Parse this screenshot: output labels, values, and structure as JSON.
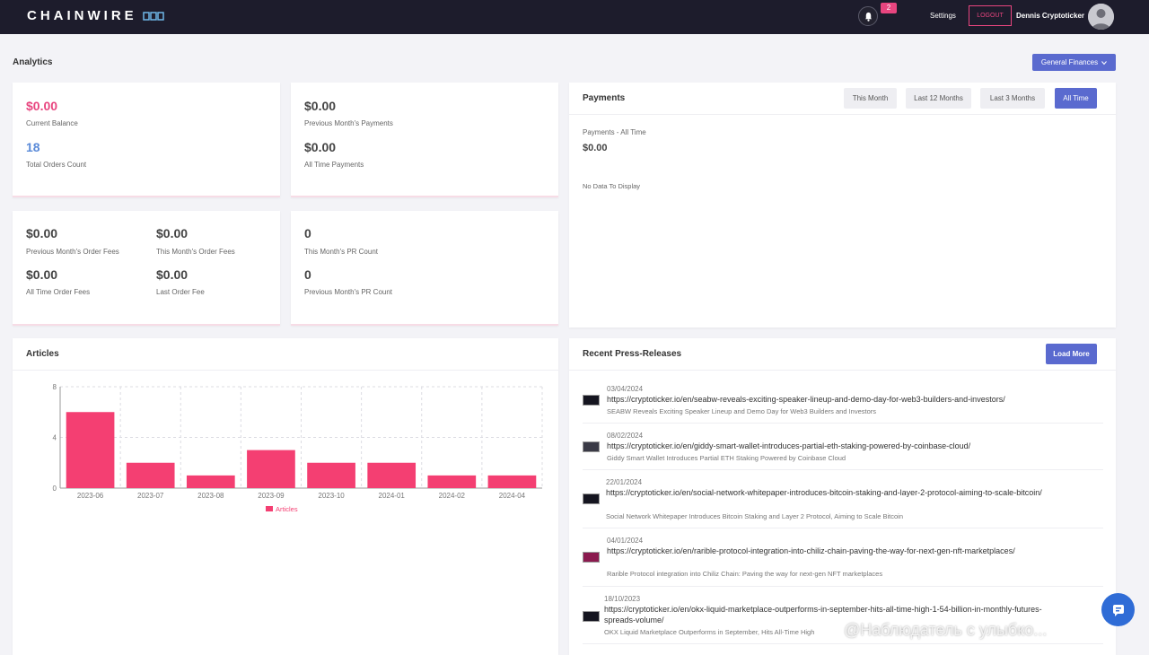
{
  "header": {
    "logo_text": "CHAINWIRE",
    "notification_count": "2",
    "settings_label": "Settings",
    "logout_label": "LOGOUT",
    "user_name": "Dennis Cryptoticker"
  },
  "page": {
    "title": "Analytics",
    "dropdown_label": "General Finances"
  },
  "stats": {
    "current_balance": {
      "value": "$0.00",
      "label": "Current Balance"
    },
    "total_orders": {
      "value": "18",
      "label": "Total Orders Count"
    },
    "prev_month_payments": {
      "value": "$0.00",
      "label": "Previous Month's Payments"
    },
    "all_time_payments": {
      "value": "$0.00",
      "label": "All Time Payments"
    },
    "prev_month_order_fees": {
      "value": "$0.00",
      "label": "Previous Month's Order Fees"
    },
    "this_month_order_fees": {
      "value": "$0.00",
      "label": "This Month's Order Fees"
    },
    "all_time_order_fees": {
      "value": "$0.00",
      "label": "All Time Order Fees"
    },
    "last_order_fee": {
      "value": "$0.00",
      "label": "Last Order Fee"
    },
    "this_month_pr": {
      "value": "0",
      "label": "This Month's PR Count"
    },
    "prev_month_pr": {
      "value": "0",
      "label": "Previous Month's PR Count"
    }
  },
  "payments": {
    "title": "Payments",
    "tabs": [
      "This Month",
      "Last 12 Months",
      "Last 3 Months",
      "All Time"
    ],
    "active_tab": "All Time",
    "subtitle": "Payments - All Time",
    "total": "$0.00",
    "empty_message": "No Data To Display"
  },
  "articles": {
    "title": "Articles"
  },
  "chart_data": {
    "type": "bar",
    "categories": [
      "2023-06",
      "2023-07",
      "2023-08",
      "2023-09",
      "2023-10",
      "2024-01",
      "2024-02",
      "2024-04"
    ],
    "series": [
      {
        "name": "Articles",
        "values": [
          6,
          2,
          1,
          3,
          2,
          2,
          1,
          1
        ],
        "color": "#f43f72"
      }
    ],
    "ylim": [
      0,
      8
    ],
    "yticks": [
      0,
      4,
      8
    ],
    "grid": true,
    "legend": "bottom-center"
  },
  "press": {
    "title": "Recent Press-Releases",
    "load_more_label": "Load More",
    "items": [
      {
        "date": "03/04/2024",
        "url": "https://cryptoticker.io/en/seabw-reveals-exciting-speaker-lineup-and-demo-day-for-web3-builders-and-investors/",
        "desc": "SEABW Reveals Exciting Speaker Lineup and Demo Day for Web3 Builders and Investors"
      },
      {
        "date": "08/02/2024",
        "url": "https://cryptoticker.io/en/giddy-smart-wallet-introduces-partial-eth-staking-powered-by-coinbase-cloud/",
        "desc": "Giddy Smart Wallet Introduces Partial ETH Staking Powered by Coinbase Cloud"
      },
      {
        "date": "22/01/2024",
        "url": "https://cryptoticker.io/en/social-network-whitepaper-introduces-bitcoin-staking-and-layer-2-protocol-aiming-to-scale-bitcoin/",
        "desc": "Social Network Whitepaper Introduces Bitcoin Staking and Layer 2 Protocol, Aiming to Scale Bitcoin"
      },
      {
        "date": "04/01/2024",
        "url": "https://cryptoticker.io/en/rarible-protocol-integration-into-chiliz-chain-paving-the-way-for-next-gen-nft-marketplaces/",
        "desc": "Rarible Protocol integration into Chiliz Chain: Paving the way for next-gen NFT marketplaces"
      },
      {
        "date": "18/10/2023",
        "url": "https://cryptoticker.io/en/okx-liquid-marketplace-outperforms-in-september-hits-all-time-high-1-54-billion-in-monthly-futures-spreads-volume/",
        "desc": "OKX Liquid Marketplace Outperforms in September, Hits All-Time High"
      }
    ]
  },
  "overlay": {
    "watermark": "@Наблюдатель с улыбко..."
  }
}
